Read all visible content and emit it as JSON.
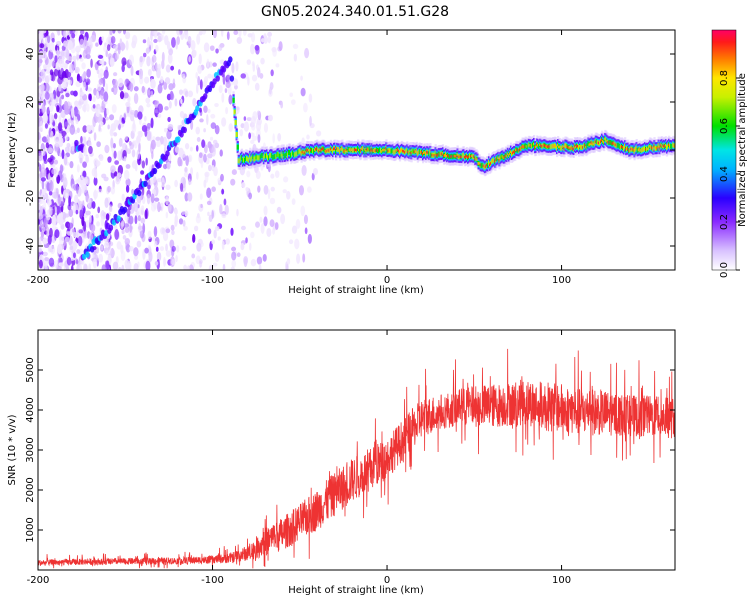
{
  "chart_data": [
    {
      "type": "heatmap",
      "title": "GN05.2024.340.01.51.G28",
      "xlabel": "Height of straight line (km)",
      "ylabel": "Frequency (Hz)",
      "xlim": [
        -200,
        165
      ],
      "ylim": [
        -50,
        50
      ],
      "xticks": [
        -200,
        -100,
        0,
        100
      ],
      "yticks": [
        -40,
        -20,
        0,
        20,
        40
      ],
      "colorbar": {
        "label": "Normalized spectral amplitude",
        "ticks": [
          0.0,
          0.2,
          0.4,
          0.6,
          0.8
        ],
        "range": [
          0,
          1
        ],
        "colormap": [
          "#ffffff",
          "#c9a6ff",
          "#7d1fff",
          "#2a00ff",
          "#00e5ff",
          "#00e000",
          "#ffe600",
          "#ff2a1a",
          "#ff0066"
        ]
      },
      "ridge": {
        "description_points": [
          {
            "x": -175,
            "y": -45
          },
          {
            "x": -160,
            "y": -33
          },
          {
            "x": -140,
            "y": -15
          },
          {
            "x": -120,
            "y": 5
          },
          {
            "x": -100,
            "y": 28
          },
          {
            "x": -90,
            "y": 38
          },
          {
            "x": -85,
            "y": -4
          },
          {
            "x": -60,
            "y": -2
          },
          {
            "x": -40,
            "y": 0
          },
          {
            "x": 0,
            "y": 0
          },
          {
            "x": 50,
            "y": -3
          },
          {
            "x": 55,
            "y": -7
          },
          {
            "x": 80,
            "y": 2
          },
          {
            "x": 110,
            "y": 1
          },
          {
            "x": 125,
            "y": 4
          },
          {
            "x": 140,
            "y": 0
          },
          {
            "x": 165,
            "y": 2
          }
        ],
        "noise_region_x": [
          -200,
          -55
        ]
      }
    },
    {
      "type": "line",
      "xlabel": "Height of straight line (km)",
      "ylabel": "SNR (10 * v/v)",
      "xlim": [
        -200,
        165
      ],
      "ylim": [
        0,
        6000
      ],
      "xticks": [
        -200,
        -100,
        0,
        100
      ],
      "yticks": [
        1000,
        2000,
        3000,
        4000,
        5000
      ],
      "line_color": "#ee3333",
      "series": [
        {
          "x": [
            -200,
            -180,
            -160,
            -140,
            -120,
            -100,
            -90,
            -80,
            -70,
            -60,
            -50,
            -40,
            -30,
            -20,
            -10,
            0,
            10,
            20,
            30,
            40,
            50,
            60,
            70,
            80,
            90,
            100,
            110,
            120,
            130,
            140,
            150,
            160,
            165
          ],
          "values": [
            180,
            200,
            210,
            220,
            230,
            260,
            300,
            420,
            700,
            900,
            1200,
            1500,
            1900,
            2250,
            2500,
            2800,
            3300,
            3800,
            3950,
            4050,
            4100,
            4100,
            4150,
            4200,
            4100,
            4050,
            3950,
            3950,
            3900,
            3850,
            3850,
            3800,
            3800
          ],
          "spread": [
            120,
            120,
            120,
            130,
            130,
            150,
            200,
            300,
            550,
            650,
            700,
            800,
            850,
            850,
            850,
            800,
            800,
            750,
            700,
            700,
            800,
            850,
            850,
            900,
            950,
            950,
            900,
            900,
            850,
            800,
            800,
            800,
            800
          ]
        }
      ]
    }
  ]
}
